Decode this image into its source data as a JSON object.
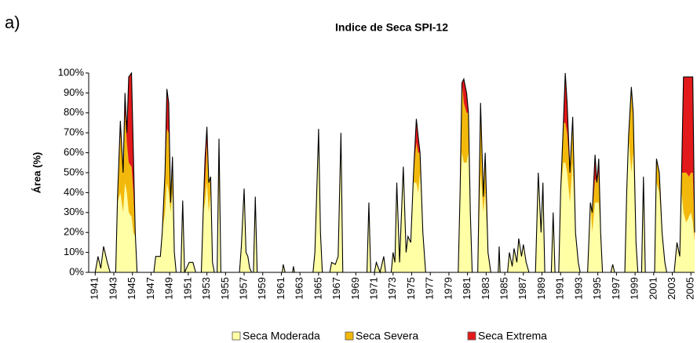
{
  "chart_data": {
    "type": "stacked_area",
    "label": "a)",
    "title": "Indice de Seca SPI-12",
    "ylabel": "Área (%)",
    "legend": "bottom",
    "xlim": [
      1940.3,
      2005.4
    ],
    "xticks": [
      1941,
      1943,
      1945,
      1947,
      1949,
      1951,
      1953,
      1955,
      1957,
      1959,
      1961,
      1963,
      1965,
      1967,
      1969,
      1971,
      1973,
      1975,
      1977,
      1979,
      1981,
      1983,
      1985,
      1987,
      1989,
      1991,
      1993,
      1995,
      1997,
      1999,
      2001,
      2003,
      2005
    ],
    "ylim": [
      0,
      100
    ],
    "yticks": [
      {
        "value": 0,
        "label": "0%"
      },
      {
        "value": 10,
        "label": "10%"
      },
      {
        "value": 20,
        "label": "20%"
      },
      {
        "value": 30,
        "label": "30%"
      },
      {
        "value": 40,
        "label": "40%"
      },
      {
        "value": 50,
        "label": "50%"
      },
      {
        "value": 60,
        "label": "60%"
      },
      {
        "value": 70,
        "label": "70%"
      },
      {
        "value": 80,
        "label": "80%"
      },
      {
        "value": 90,
        "label": "90%"
      },
      {
        "value": 100,
        "label": "100%"
      }
    ],
    "x": [
      1941.0,
      1941.3,
      1941.6,
      1941.9,
      1942.3,
      1942.6,
      1943.2,
      1943.4,
      1943.7,
      1944.0,
      1944.2,
      1944.4,
      1944.6,
      1944.9,
      1945.1,
      1945.3,
      1945.5,
      1947.3,
      1947.5,
      1948.0,
      1948.2,
      1948.5,
      1948.7,
      1948.9,
      1949.1,
      1949.3,
      1949.5,
      1949.7,
      1950.2,
      1950.4,
      1950.6,
      1951.1,
      1951.5,
      1951.8,
      1952.4,
      1952.6,
      1952.8,
      1953.0,
      1953.2,
      1953.4,
      1953.6,
      1953.8,
      1954.1,
      1954.3,
      1954.5,
      1956.5,
      1956.7,
      1957.0,
      1957.2,
      1957.4,
      1957.6,
      1957.8,
      1958.0,
      1958.2,
      1958.4,
      1961.1,
      1961.2,
      1961.4,
      1962.2,
      1962.3,
      1962.4,
      1964.4,
      1964.6,
      1964.8,
      1965.0,
      1965.2,
      1965.4,
      1966.2,
      1966.4,
      1966.8,
      1967.1,
      1967.4,
      1967.6,
      1970.2,
      1970.4,
      1970.6,
      1971.0,
      1971.2,
      1971.6,
      1972.0,
      1972.2,
      1972.8,
      1973.0,
      1973.2,
      1973.4,
      1973.7,
      1974.1,
      1974.4,
      1974.6,
      1974.9,
      1975.2,
      1975.5,
      1975.7,
      1975.9,
      1976.2,
      1976.5,
      1980.0,
      1980.2,
      1980.4,
      1980.6,
      1980.9,
      1981.1,
      1981.3,
      1981.5,
      1982.1,
      1982.4,
      1982.7,
      1982.9,
      1983.2,
      1983.5,
      1984.3,
      1984.4,
      1984.5,
      1985.3,
      1985.5,
      1985.8,
      1986.0,
      1986.3,
      1986.5,
      1986.8,
      1987.0,
      1987.3,
      1987.6,
      1988.3,
      1988.6,
      1988.9,
      1989.1,
      1989.3,
      1990.0,
      1990.2,
      1990.4,
      1990.8,
      1991.0,
      1991.3,
      1991.5,
      1991.7,
      1992.0,
      1992.3,
      1992.6,
      1992.9,
      1993.1,
      1993.9,
      1994.2,
      1994.4,
      1994.7,
      1994.9,
      1995.1,
      1995.3,
      1995.5,
      1996.4,
      1996.6,
      1996.8,
      1997.9,
      1998.1,
      1998.3,
      1998.6,
      1998.8,
      1999.1,
      1999.3,
      1999.7,
      1999.9,
      2000.1,
      2001.1,
      2001.3,
      2001.6,
      2001.9,
      2002.2,
      2002.4,
      2003.2,
      2003.5,
      2003.8,
      2004.0,
      2004.2,
      2004.5,
      2004.8,
      2005.0,
      2005.2,
      2005.4
    ],
    "series": [
      {
        "name": "Seca Moderada",
        "color": "#ffffa6",
        "values": [
          0,
          8,
          2,
          13,
          5,
          0,
          0,
          35,
          40,
          30,
          45,
          40,
          30,
          28,
          20,
          18,
          0,
          0,
          8,
          8,
          20,
          30,
          45,
          40,
          30,
          40,
          10,
          0,
          0,
          36,
          0,
          5,
          5,
          0,
          0,
          30,
          35,
          45,
          30,
          40,
          5,
          0,
          0,
          45,
          0,
          0,
          13,
          40,
          10,
          8,
          2,
          0,
          0,
          38,
          0,
          0,
          4,
          0,
          0,
          3,
          0,
          0,
          10,
          40,
          72,
          20,
          0,
          0,
          5,
          4,
          8,
          70,
          0,
          0,
          35,
          0,
          0,
          5,
          0,
          8,
          0,
          0,
          10,
          5,
          45,
          5,
          53,
          10,
          18,
          15,
          45,
          45,
          40,
          50,
          20,
          0,
          0,
          40,
          60,
          55,
          55,
          60,
          30,
          0,
          0,
          50,
          30,
          40,
          10,
          0,
          0,
          13,
          0,
          0,
          10,
          3,
          12,
          5,
          17,
          8,
          14,
          5,
          0,
          0,
          50,
          20,
          45,
          0,
          0,
          30,
          0,
          0,
          40,
          55,
          55,
          50,
          35,
          55,
          20,
          5,
          0,
          0,
          35,
          20,
          35,
          35,
          35,
          20,
          0,
          0,
          4,
          0,
          0,
          40,
          68,
          50,
          60,
          15,
          0,
          0,
          48,
          0,
          0,
          45,
          40,
          20,
          5,
          0,
          0,
          15,
          8,
          40,
          30,
          25,
          28,
          30,
          25,
          15
        ]
      },
      {
        "name": "Seca Severa",
        "color": "#f2b90c",
        "values": [
          0,
          0,
          0,
          0,
          0,
          0,
          0,
          3,
          30,
          20,
          35,
          25,
          25,
          25,
          20,
          2,
          0,
          0,
          0,
          0,
          0,
          20,
          27,
          30,
          5,
          18,
          0,
          0,
          0,
          0,
          0,
          0,
          0,
          0,
          0,
          0,
          10,
          20,
          15,
          8,
          0,
          0,
          0,
          22,
          0,
          0,
          0,
          2,
          0,
          0,
          0,
          0,
          0,
          0,
          0,
          0,
          0,
          0,
          0,
          0,
          0,
          0,
          0,
          0,
          0,
          0,
          0,
          0,
          0,
          0,
          0,
          0,
          0,
          0,
          0,
          0,
          0,
          0,
          0,
          0,
          0,
          0,
          0,
          0,
          0,
          0,
          0,
          0,
          0,
          0,
          5,
          20,
          20,
          10,
          0,
          0,
          0,
          0,
          35,
          30,
          25,
          20,
          0,
          0,
          0,
          35,
          8,
          20,
          0,
          0,
          0,
          0,
          0,
          0,
          0,
          0,
          0,
          0,
          0,
          0,
          0,
          0,
          0,
          0,
          0,
          0,
          0,
          0,
          0,
          0,
          0,
          0,
          0,
          20,
          20,
          20,
          15,
          20,
          0,
          0,
          0,
          0,
          0,
          10,
          12,
          10,
          15,
          0,
          0,
          0,
          0,
          0,
          0,
          0,
          0,
          43,
          20,
          0,
          0,
          0,
          0,
          0,
          0,
          12,
          10,
          0,
          0,
          0,
          0,
          0,
          0,
          10,
          20,
          25,
          20,
          20,
          25,
          5
        ]
      },
      {
        "name": "Seca Extrema",
        "color": "#e31a1c",
        "values": [
          0,
          0,
          0,
          0,
          0,
          0,
          0,
          0,
          6,
          0,
          10,
          5,
          43,
          47,
          20,
          0,
          0,
          0,
          0,
          0,
          0,
          0,
          20,
          15,
          0,
          0,
          0,
          0,
          0,
          0,
          0,
          0,
          0,
          0,
          0,
          0,
          12,
          8,
          0,
          0,
          0,
          0,
          0,
          0,
          0,
          0,
          0,
          0,
          0,
          0,
          0,
          0,
          0,
          0,
          0,
          0,
          0,
          0,
          0,
          0,
          0,
          0,
          0,
          0,
          0,
          0,
          0,
          0,
          0,
          0,
          0,
          0,
          0,
          0,
          0,
          0,
          0,
          0,
          0,
          0,
          0,
          0,
          0,
          0,
          0,
          0,
          0,
          0,
          0,
          0,
          0,
          12,
          8,
          0,
          0,
          0,
          0,
          0,
          0,
          12,
          10,
          0,
          0,
          0,
          0,
          0,
          0,
          0,
          0,
          0,
          0,
          0,
          0,
          0,
          0,
          0,
          0,
          0,
          0,
          0,
          0,
          0,
          0,
          0,
          0,
          0,
          0,
          0,
          0,
          0,
          0,
          0,
          0,
          0,
          25,
          15,
          0,
          3,
          0,
          0,
          0,
          0,
          0,
          0,
          12,
          0,
          7,
          0,
          0,
          0,
          0,
          0,
          0,
          0,
          0,
          0,
          0,
          0,
          0,
          0,
          0,
          0,
          0,
          0,
          0,
          0,
          0,
          0,
          0,
          0,
          0,
          0,
          48,
          48,
          50,
          48,
          48,
          0
        ]
      }
    ]
  }
}
